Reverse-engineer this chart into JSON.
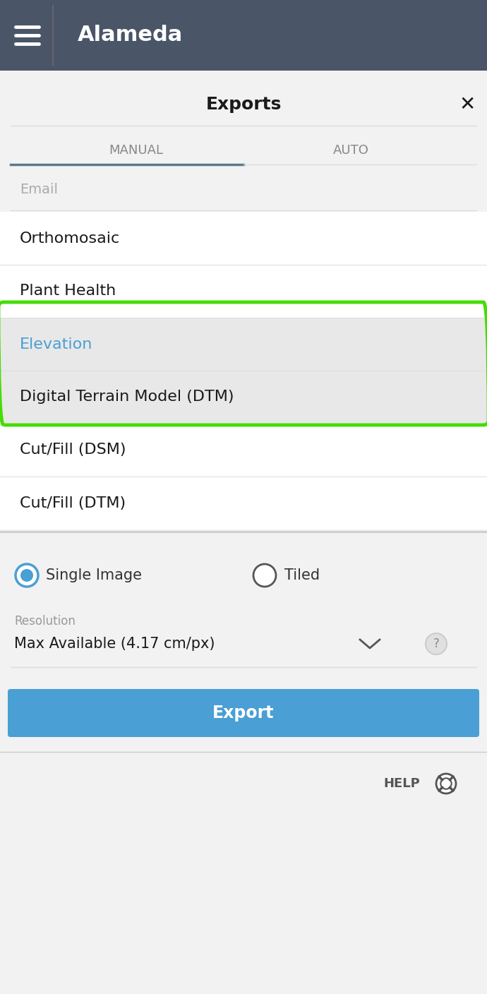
{
  "header_bg": "#4a5568",
  "menu_icon_color": "#ffffff",
  "header_title": "Alameda",
  "header_title_color": "#ffffff",
  "panel_bg": "#f2f2f2",
  "exports_title": "Exports",
  "exports_title_color": "#1a1a1a",
  "exports_fontsize": 18,
  "close_x_color": "#1a1a1a",
  "tab_manual": "MANUAL",
  "tab_auto": "AUTO",
  "tab_color": "#888888",
  "tab_underline_color": "#5a7a8a",
  "email_label": "Email",
  "email_label_color": "#aaaaaa",
  "dropdown_bg": "#ffffff",
  "dropdown_items": [
    "Orthomosaic",
    "Plant Health",
    "Elevation",
    "Digital Terrain Model (DTM)",
    "Cut/Fill (DSM)",
    "Cut/Fill (DTM)"
  ],
  "dropdown_item_colors": [
    "#1a1a1a",
    "#1a1a1a",
    "#4a9fd4",
    "#1a1a1a",
    "#1a1a1a",
    "#1a1a1a"
  ],
  "highlighted_items": [
    2,
    3
  ],
  "highlight_bg": "#e8e8e8",
  "highlight_border_color": "#44dd00",
  "radio_selected_color": "#4a9fd4",
  "radio_unselected_color": "#888888",
  "single_image_label": "Single Image",
  "tiled_label": "Tiled",
  "resolution_label": "Resolution",
  "resolution_value": "Max Available (4.17 cm/px)",
  "export_btn_color": "#4a9fd4",
  "export_btn_text": "Export",
  "export_btn_text_color": "#ffffff",
  "help_text": "HELP",
  "help_text_color": "#555555",
  "separator_color": "#dddddd"
}
